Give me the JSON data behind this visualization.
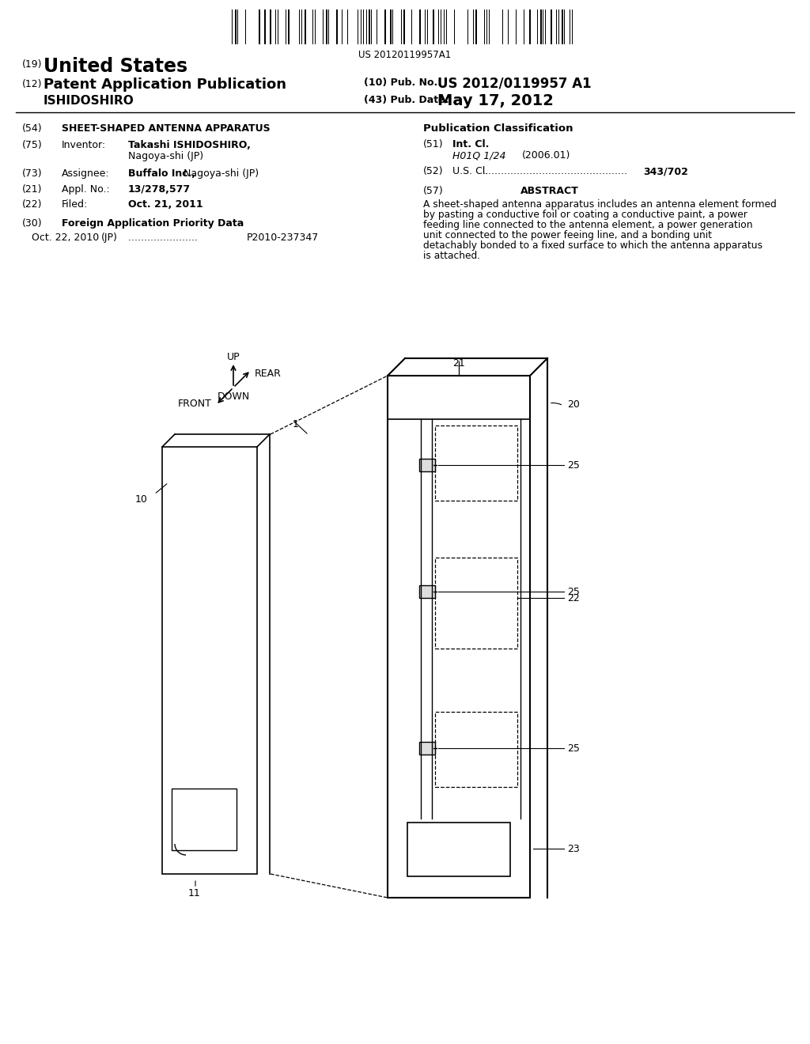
{
  "bg_color": "#ffffff",
  "barcode_text": "US 20120119957A1",
  "header": {
    "line1_num": "(19)",
    "line1_text": "United States",
    "line2_num": "(12)",
    "line2_text": "Patent Application Publication",
    "line2_right_label": "(10) Pub. No.:",
    "line2_right_value": "US 2012/0119957 A1",
    "line3_inventor": "ISHIDOSHIRO",
    "line3_right_label": "(43) Pub. Date:",
    "line3_right_value": "May 17, 2012"
  },
  "left_section": {
    "s54_num": "(54)",
    "s54_title": "SHEET-SHAPED ANTENNA APPARATUS",
    "s75_num": "(75)",
    "s75_label": "Inventor:",
    "s75_name": "Takashi ISHIDOSHIRO,",
    "s75_city": "Nagoya-shi (JP)",
    "s73_num": "(73)",
    "s73_label": "Assignee:",
    "s73_bold": "Buffalo Inc.,",
    "s73_rest": " Nagoya-shi (JP)",
    "s21_num": "(21)",
    "s21_label": "Appl. No.:",
    "s21_value": "13/278,577",
    "s22_num": "(22)",
    "s22_label": "Filed:",
    "s22_value": "Oct. 21, 2011",
    "s30_num": "(30)",
    "s30_label": "Foreign Application Priority Data",
    "s30_date": "Oct. 22, 2010",
    "s30_country": "(JP)",
    "s30_appno": "P2010-237347"
  },
  "right_section": {
    "pub_class_title": "Publication Classification",
    "s51_num": "(51)",
    "s51_label": "Int. Cl.",
    "s51_class": "H01Q 1/24",
    "s51_year": "(2006.01)",
    "s52_num": "(52)",
    "s52_label": "U.S. Cl.",
    "s52_value": "343/702",
    "s57_num": "(57)",
    "s57_title": "ABSTRACT",
    "s57_text": "A sheet-shaped antenna apparatus includes an antenna element formed by pasting a conductive foil or coating a conductive paint, a power feeding line connected to the antenna element, a power generation unit connected to the power feeing line, and a bonding unit detachably bonded to a fixed surface to which the antenna apparatus is attached."
  }
}
